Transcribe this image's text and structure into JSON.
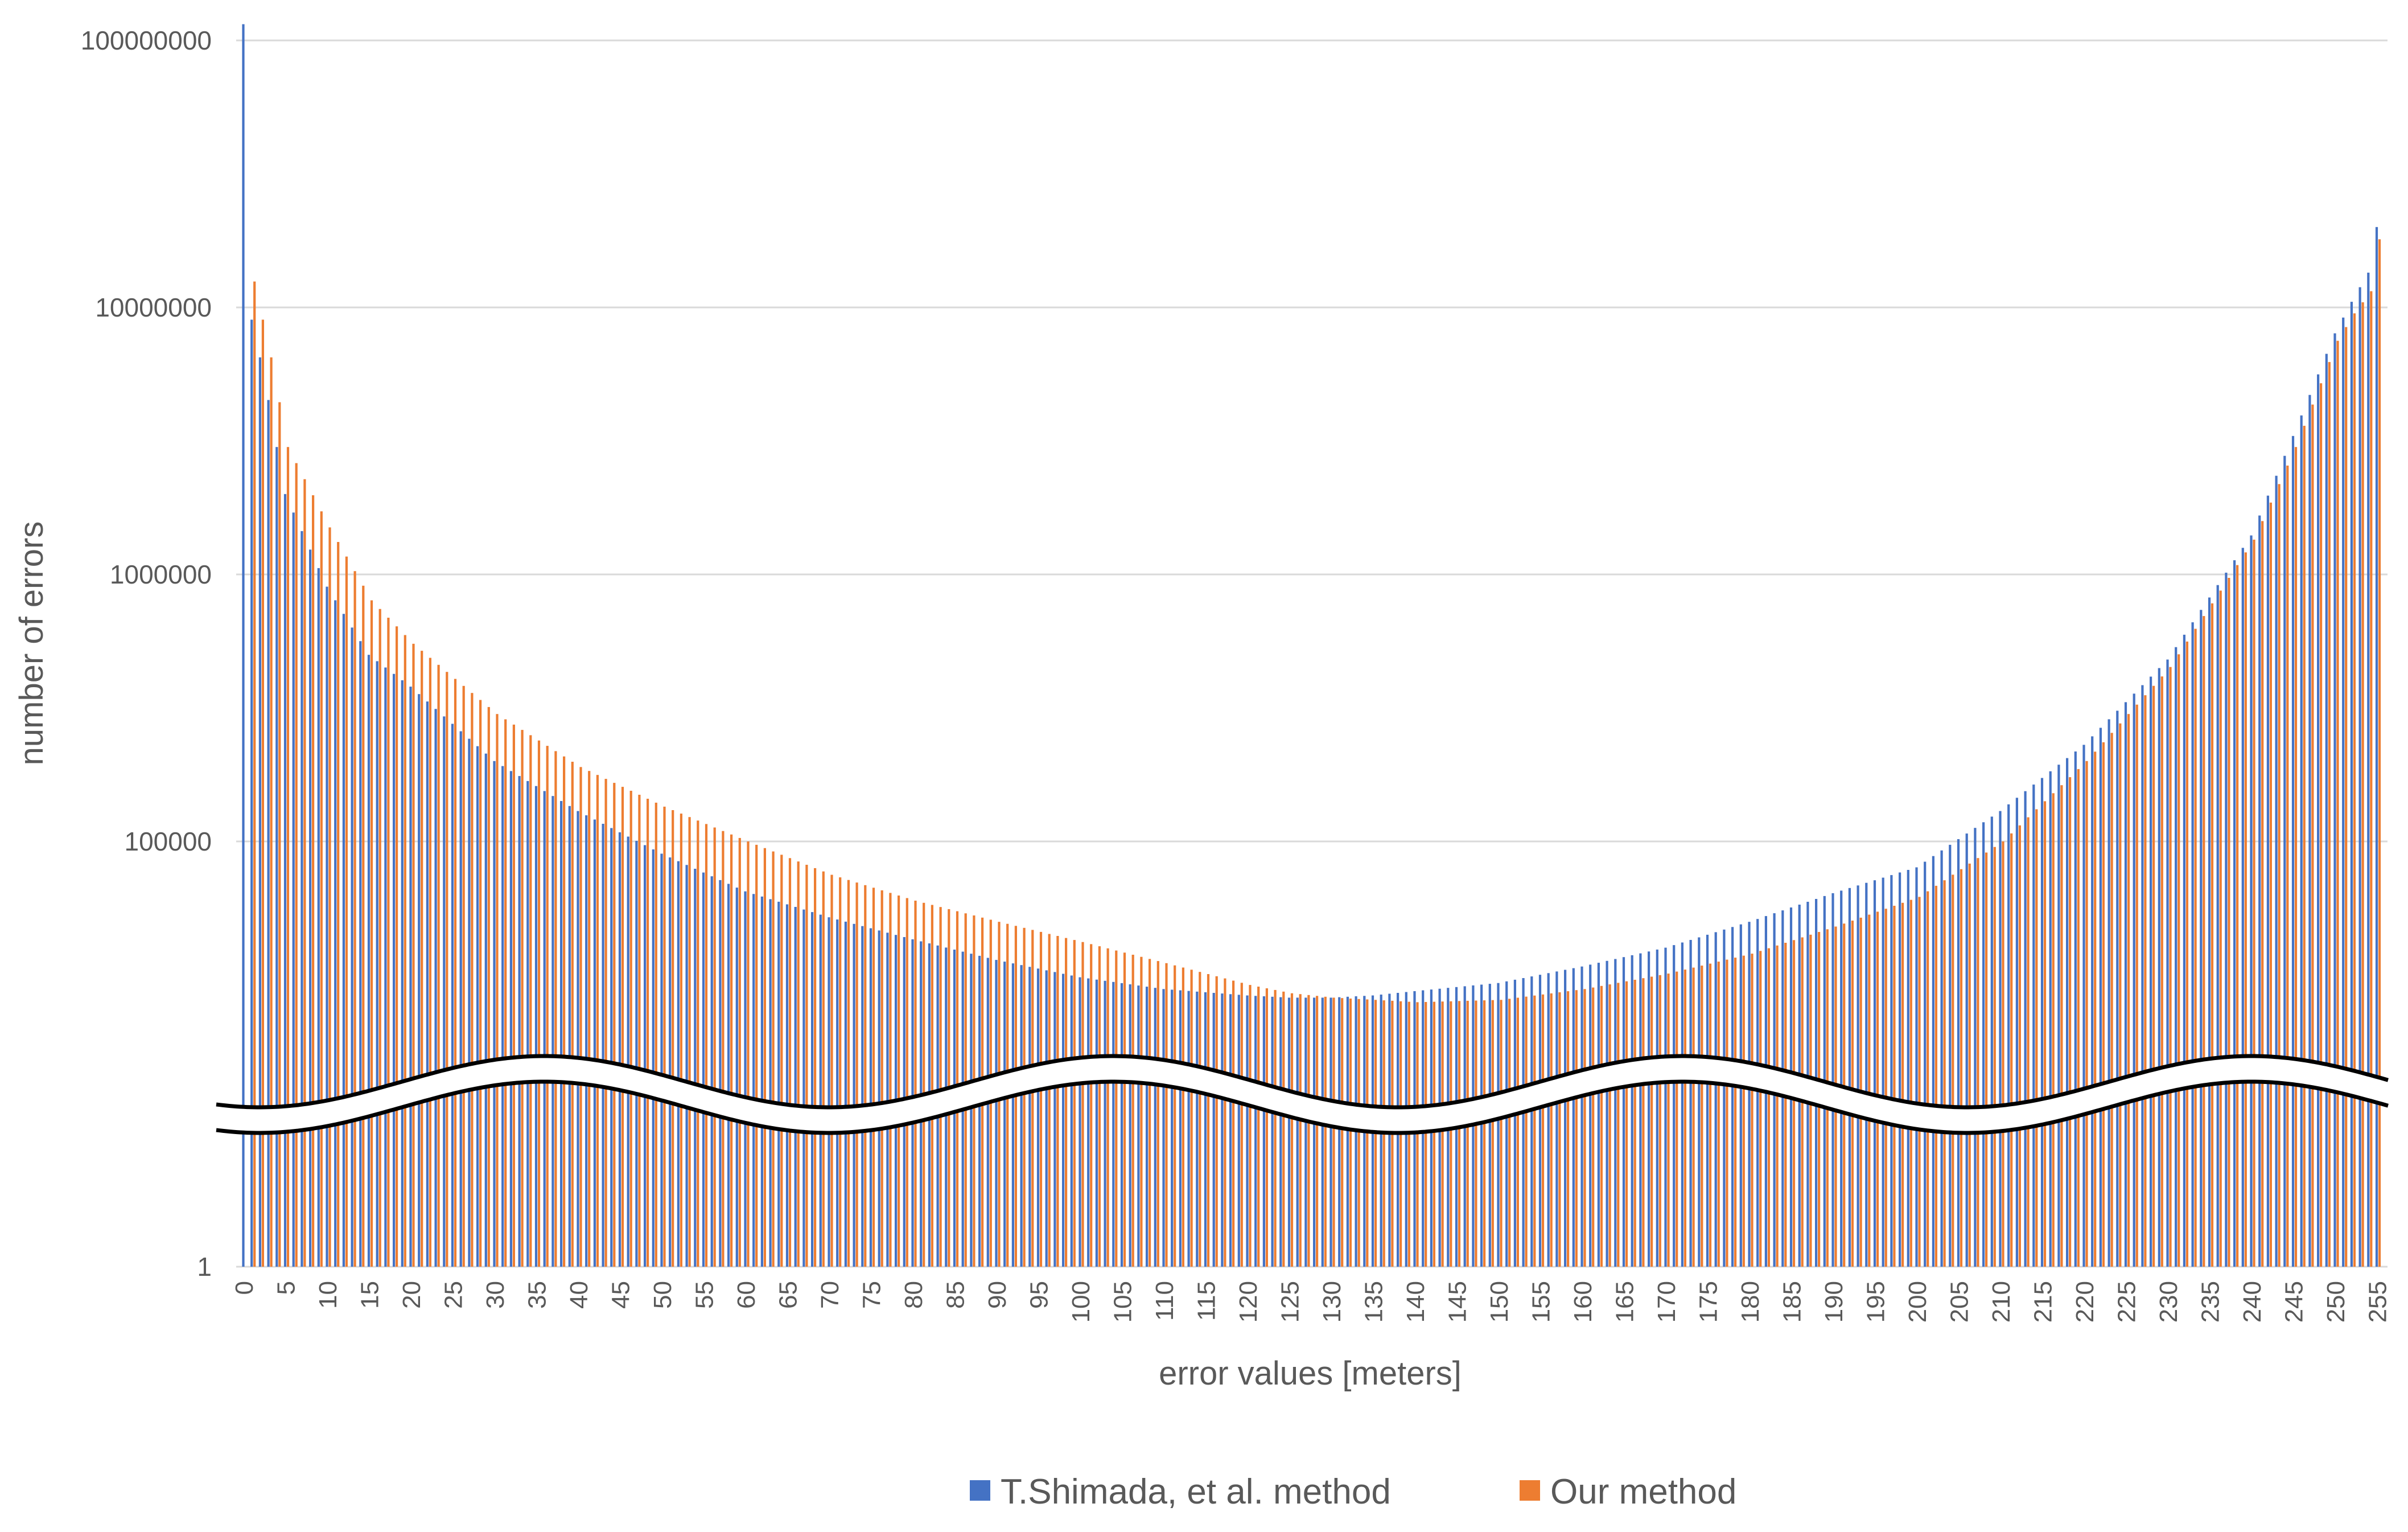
{
  "chart_data": {
    "type": "bar",
    "ylabel": "number of errors",
    "xlabel": "error values [meters]",
    "y_scale": "log (axis broken between 1 and ~10000)",
    "y_ticks": [
      "1",
      "100000",
      "1000000",
      "10000000",
      "100000000"
    ],
    "x_tick_labels": [
      "0",
      "5",
      "10",
      "15",
      "20",
      "25",
      "30",
      "35",
      "40",
      "45",
      "50",
      "55",
      "60",
      "65",
      "70",
      "75",
      "80",
      "85",
      "90",
      "95",
      "100",
      "105",
      "110",
      "115",
      "120",
      "125",
      "130",
      "135",
      "140",
      "145",
      "150",
      "155",
      "160",
      "165",
      "170",
      "175",
      "180",
      "185",
      "190",
      "195",
      "200",
      "205",
      "210",
      "215",
      "220",
      "225",
      "230",
      "235",
      "240",
      "245",
      "250",
      "255"
    ],
    "x_range": [
      0,
      255
    ],
    "grid": "horizontal",
    "legend_position": "bottom",
    "axis_break": "wavy band across plot just above y = 1",
    "colors": {
      "shimada": "#4472C4",
      "ours": "#ED7D31",
      "grid": "#D9D9D9",
      "text": "#595959"
    },
    "series": [
      {
        "name": "T.Shimada, et al. method",
        "key": "shimada",
        "sample_x": [
          0,
          1,
          2,
          3,
          5,
          10,
          15,
          20,
          30,
          40,
          50,
          60,
          70,
          80,
          90,
          100,
          110,
          120,
          125,
          130,
          135,
          140,
          150,
          160,
          170,
          180,
          190,
          200,
          210,
          220,
          230,
          240,
          245,
          250,
          252,
          254,
          255
        ],
        "sample_y": [
          115000000,
          9000000,
          6500000,
          4500000,
          2000000,
          900000,
          500000,
          380000,
          200000,
          130000,
          90000,
          65000,
          52000,
          43000,
          36000,
          31000,
          28000,
          26500,
          26000,
          26000,
          26500,
          27500,
          29500,
          34000,
          40000,
          50000,
          64000,
          80000,
          130000,
          230000,
          480000,
          1400000,
          3300000,
          8000000,
          10500000,
          13500000,
          20000000
        ]
      },
      {
        "name": "Our method",
        "key": "ours",
        "sample_x": [
          0,
          1,
          2,
          3,
          5,
          10,
          15,
          20,
          30,
          40,
          50,
          60,
          70,
          80,
          90,
          100,
          110,
          120,
          125,
          130,
          135,
          140,
          150,
          160,
          170,
          180,
          190,
          200,
          210,
          220,
          230,
          240,
          245,
          250,
          252,
          254,
          255
        ],
        "sample_y": [
          1,
          12500000,
          9000000,
          6500000,
          3000000,
          1500000,
          800000,
          550000,
          300000,
          190000,
          135000,
          100000,
          75000,
          60000,
          50000,
          42000,
          35000,
          29000,
          27000,
          26000,
          25500,
          25000,
          25500,
          28000,
          32000,
          38000,
          48000,
          62000,
          100000,
          200000,
          450000,
          1350000,
          3000000,
          7500000,
          9500000,
          11500000,
          18000000
        ]
      }
    ]
  },
  "legend": [
    {
      "label": "T.Shimada, et al. method",
      "color": "#4472C4"
    },
    {
      "label": "Our method",
      "color": "#ED7D31"
    }
  ]
}
